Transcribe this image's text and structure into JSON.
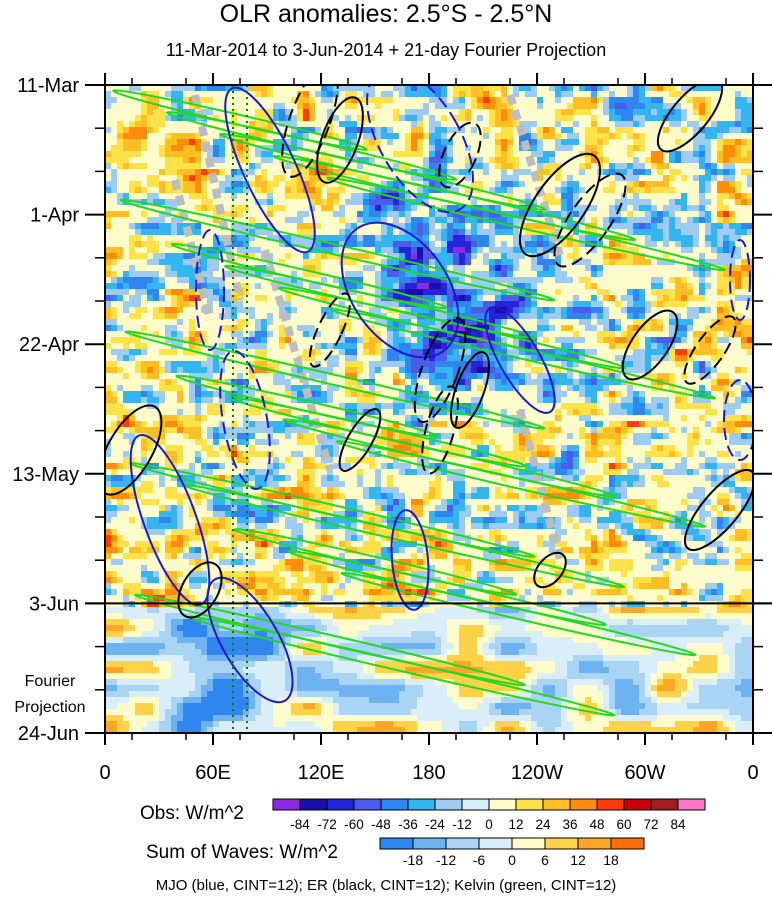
{
  "title": "OLR anomalies: 2.5°S - 2.5°N",
  "subtitle": "11-Mar-2014 to 3-Jun-2014 + 21-day Fourier Projection",
  "chart_data": {
    "type": "heatmap",
    "x_axis": {
      "ticks": [
        "0",
        "60E",
        "120E",
        "180",
        "120W",
        "60W",
        "0"
      ],
      "range": [
        0,
        360
      ],
      "unit": "longitude"
    },
    "y_axis": {
      "ticks": [
        "11-Mar",
        "1-Apr",
        "22-Apr",
        "13-May",
        "3-Jun",
        "24-Jun"
      ],
      "range": [
        "11-Mar-2014",
        "24-Jun-2014"
      ],
      "reversed": true
    },
    "projection_label": [
      "Fourier",
      "Projection"
    ],
    "projection_start": "3-Jun",
    "obs_legend": {
      "label": "Obs: W/m^2",
      "levels": [
        "-84",
        "-72",
        "-60",
        "-48",
        "-36",
        "-24",
        "-12",
        "0",
        "12",
        "24",
        "36",
        "48",
        "60",
        "72",
        "84"
      ],
      "colors": [
        "#8a2be2",
        "#1a0fa8",
        "#2424d8",
        "#4a5ce8",
        "#2f86f0",
        "#35b5f0",
        "#9dcbf2",
        "#d9eef8",
        "#fffccc",
        "#ffe14a",
        "#ffbf24",
        "#ff8c0a",
        "#ff3c0a",
        "#c8000a",
        "#a01e1e",
        "#ff78c8"
      ]
    },
    "waves_legend": {
      "label": "Sum of Waves: W/m^2",
      "levels": [
        "-18",
        "-12",
        "-6",
        "0",
        "6",
        "12",
        "18"
      ],
      "colors": [
        "#2f86f0",
        "#6fb2f2",
        "#aad4f4",
        "#d9eef8",
        "#fffccc",
        "#ffd24a",
        "#ffa628",
        "#ff6e0a"
      ]
    },
    "contours": [
      {
        "name": "MJO",
        "color": "#1a1acd"
      },
      {
        "name": "ER",
        "color": "#000000"
      },
      {
        "name": "Kelvin",
        "color": "#22d822"
      }
    ]
  },
  "footer": "MJO (blue, CINT=12); ER (black, CINT=12); Kelvin (green, CINT=12)"
}
